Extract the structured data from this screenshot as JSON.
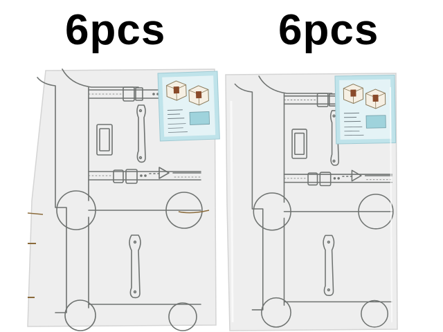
{
  "captions": {
    "left": "6pcs",
    "right": "6pcs"
  },
  "colors": {
    "board": "#eeeeee",
    "board_edge": "#d4d4d4",
    "line_art": "#6e7270",
    "label_teal": "#bfe3ea",
    "strap": "#f7f7f7",
    "cut_mark": "#8a6a3a"
  },
  "sheets": [
    {
      "name": "sheet-left",
      "shows_cut_marks": true
    },
    {
      "name": "sheet-right",
      "shows_cut_marks": false
    }
  ],
  "icons": [
    "suitcase-print",
    "strap-buckle",
    "corner-guard",
    "handle",
    "name-tag",
    "product-label"
  ]
}
